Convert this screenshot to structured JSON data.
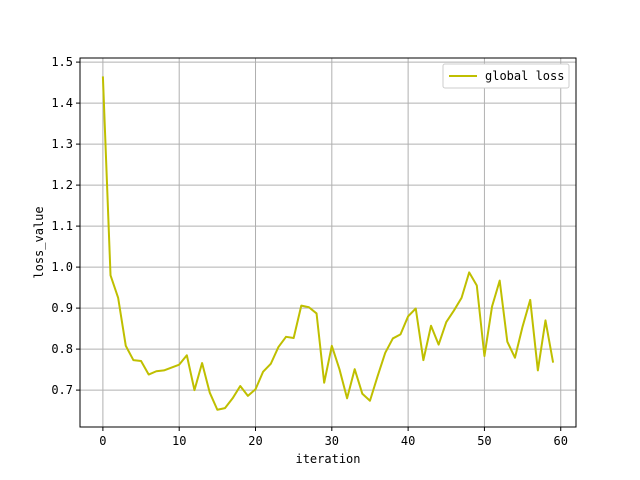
{
  "chart_data": {
    "type": "line",
    "title": "",
    "xlabel": "iteration",
    "ylabel": "loss_value",
    "xlim": [
      -3,
      62
    ],
    "ylim": [
      0.61,
      1.51
    ],
    "xticks": [
      0,
      10,
      20,
      30,
      40,
      50,
      60
    ],
    "yticks": [
      0.7,
      0.8,
      0.9,
      1.0,
      1.1,
      1.2,
      1.3,
      1.4,
      1.5
    ],
    "xtick_labels": [
      "0",
      "10",
      "20",
      "30",
      "40",
      "50",
      "60"
    ],
    "ytick_labels": [
      "0.7",
      "0.8",
      "0.9",
      "1.0",
      "1.1",
      "1.2",
      "1.3",
      "1.4",
      "1.5"
    ],
    "grid": true,
    "legend_position": "top-right",
    "series": [
      {
        "name": "global loss",
        "color": "#bfbf00",
        "x": [
          0,
          1,
          2,
          3,
          4,
          5,
          6,
          7,
          8,
          9,
          10,
          11,
          12,
          13,
          14,
          15,
          16,
          17,
          18,
          19,
          20,
          21,
          22,
          23,
          24,
          25,
          26,
          27,
          28,
          29,
          30,
          31,
          32,
          33,
          34,
          35,
          36,
          37,
          38,
          39,
          40,
          41,
          42,
          43,
          44,
          45,
          46,
          47,
          48,
          49,
          50,
          51,
          52,
          53,
          54,
          55,
          56,
          57,
          58,
          59
        ],
        "values": [
          1.465,
          0.98,
          0.925,
          0.808,
          0.773,
          0.771,
          0.738,
          0.746,
          0.748,
          0.755,
          0.762,
          0.785,
          0.7,
          0.766,
          0.694,
          0.652,
          0.656,
          0.68,
          0.71,
          0.686,
          0.702,
          0.745,
          0.764,
          0.805,
          0.83,
          0.827,
          0.906,
          0.902,
          0.887,
          0.718,
          0.808,
          0.751,
          0.68,
          0.751,
          0.691,
          0.674,
          0.734,
          0.791,
          0.826,
          0.836,
          0.88,
          0.899,
          0.773,
          0.857,
          0.811,
          0.866,
          0.894,
          0.925,
          0.987,
          0.955,
          0.783,
          0.904,
          0.967,
          0.818,
          0.779,
          0.855,
          0.92,
          0.748,
          0.87,
          0.767
        ]
      }
    ]
  }
}
